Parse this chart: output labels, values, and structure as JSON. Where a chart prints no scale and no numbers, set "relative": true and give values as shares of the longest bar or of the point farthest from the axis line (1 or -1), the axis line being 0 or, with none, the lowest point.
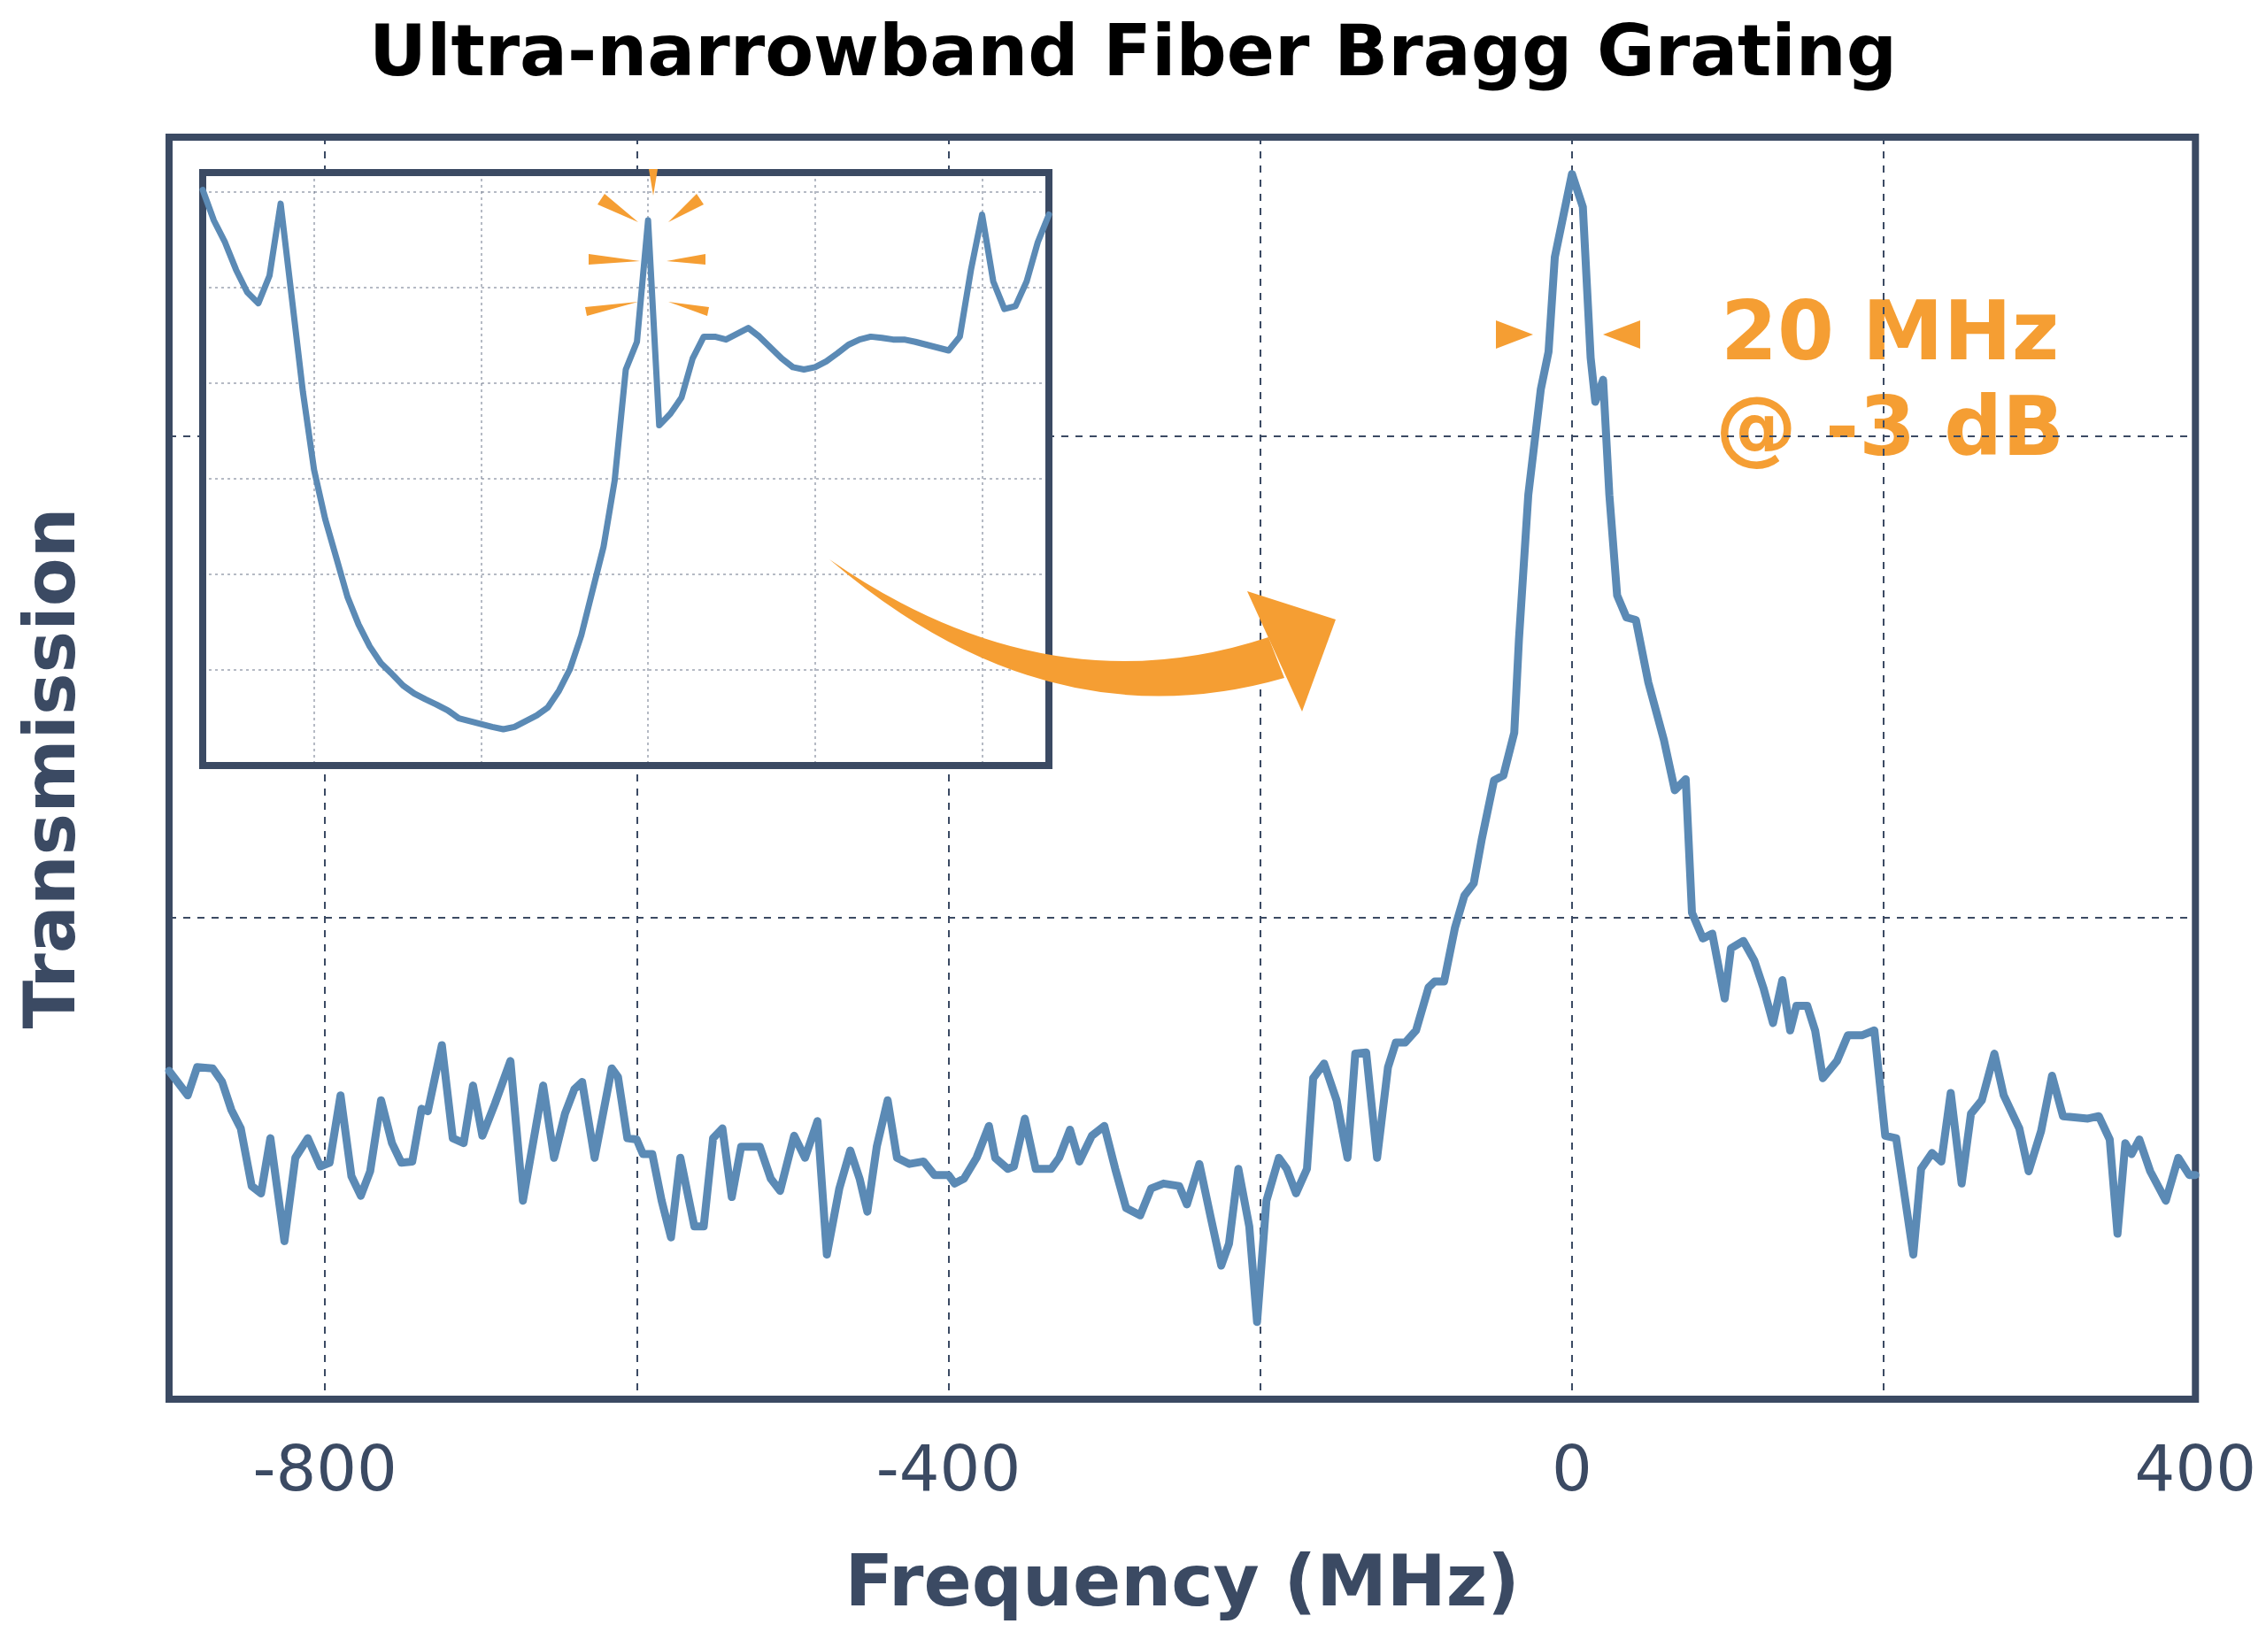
{
  "chart_data": [
    {
      "type": "line",
      "title": "Ultra-narrowband Fiber Bragg Grating",
      "xlabel": "Frequency (MHz)",
      "ylabel": "Transmission",
      "relative": true,
      "grid": true,
      "tick_labels": "x",
      "xlim": [
        -900,
        400
      ],
      "xticks": [
        -800,
        {
          "value": -600,
          "label": null
        },
        -400,
        {
          "value": -200,
          "label": null
        },
        0,
        {
          "value": 200,
          "label": null
        },
        400
      ],
      "annotations": [
        "20 MHz\n@ -3 dB"
      ],
      "x": [
        -900,
        -888,
        -882,
        -872,
        -866,
        -860,
        -854,
        -847,
        -841,
        -835,
        -826,
        -819,
        -811,
        -803,
        -797,
        -790,
        -783,
        -777,
        -771,
        -764,
        -757,
        -751,
        -744,
        -738,
        -734,
        -725,
        -718,
        -711,
        -705,
        -699,
        -691,
        -681,
        -673,
        -660,
        -653,
        -646,
        -640,
        -635,
        -627,
        -616,
        -612,
        -606,
        -600,
        -596,
        -590,
        -584,
        -578,
        -572,
        -563,
        -557,
        -551,
        -545,
        -539,
        -533,
        -521,
        -514,
        -508,
        -499,
        -492,
        -484,
        -478,
        -470,
        -463,
        -457,
        -452,
        -446,
        -439,
        -433,
        -425,
        -416,
        -409,
        -400,
        -396,
        -390,
        -382,
        -374,
        -370,
        -362,
        -358,
        -351,
        -344,
        -334,
        -329,
        -322,
        -316,
        -308,
        -300,
        -293,
        -286,
        -277,
        -270,
        -262,
        -252,
        -247,
        -239,
        -232,
        -225,
        -220,
        -214,
        -207,
        -202,
        -196,
        -188,
        -183,
        -177,
        -170,
        -166,
        -159,
        -151,
        -144,
        -139,
        -132,
        -125,
        -118,
        -113,
        -107,
        -100,
        -92,
        -88,
        -82,
        -75,
        -69,
        -63,
        -58,
        -50,
        -44,
        -37,
        -34,
        -28,
        -20,
        -15,
        -11,
        0,
        7,
        12,
        15,
        20,
        24,
        29,
        35,
        41,
        49,
        59,
        66,
        73,
        77,
        84,
        90,
        98,
        102,
        110,
        117,
        123,
        129,
        135,
        140,
        144,
        151,
        156,
        161,
        170,
        177,
        186,
        194,
        201,
        208,
        219,
        224,
        231,
        237,
        243,
        250,
        256,
        263,
        271,
        277,
        287,
        293,
        301,
        308,
        315,
        331,
        338,
        345,
        350,
        355,
        359,
        364,
        371,
        381,
        389,
        396,
        400
      ],
      "series": [
        {
          "color": "#5b8ab5",
          "values": [
            0.268,
            0.248,
            0.271,
            0.27,
            0.259,
            0.236,
            0.221,
            0.174,
            0.168,
            0.213,
            0.129,
            0.197,
            0.213,
            0.19,
            0.193,
            0.248,
            0.182,
            0.166,
            0.186,
            0.244,
            0.209,
            0.193,
            0.194,
            0.237,
            0.235,
            0.289,
            0.213,
            0.209,
            0.256,
            0.215,
            0.241,
            0.276,
            0.162,
            0.256,
            0.197,
            0.233,
            0.253,
            0.259,
            0.197,
            0.27,
            0.263,
            0.213,
            0.212,
            0.2,
            0.2,
            0.162,
            0.132,
            0.197,
            0.141,
            0.141,
            0.213,
            0.221,
            0.165,
            0.206,
            0.206,
            0.18,
            0.17,
            0.215,
            0.197,
            0.227,
            0.118,
            0.172,
            0.203,
            0.18,
            0.153,
            0.206,
            0.244,
            0.197,
            0.192,
            0.194,
            0.183,
            0.183,
            0.176,
            0.18,
            0.197,
            0.223,
            0.197,
            0.188,
            0.19,
            0.229,
            0.188,
            0.188,
            0.197,
            0.22,
            0.194,
            0.215,
            0.223,
            0.188,
            0.156,
            0.15,
            0.172,
            0.176,
            0.174,
            0.159,
            0.192,
            0.15,
            0.109,
            0.127,
            0.188,
            0.141,
            0.063,
            0.162,
            0.197,
            0.188,
            0.168,
            0.188,
            0.262,
            0.274,
            0.244,
            0.197,
            0.282,
            0.283,
            0.197,
            0.271,
            0.291,
            0.291,
            0.301,
            0.336,
            0.341,
            0.341,
            0.385,
            0.411,
            0.421,
            0.456,
            0.505,
            0.509,
            0.544,
            0.62,
            0.738,
            0.824,
            0.855,
            0.932,
            1,
            0.973,
            0.85,
            0.814,
            0.832,
            0.738,
            0.656,
            0.638,
            0.636,
            0.585,
            0.538,
            0.497,
            0.506,
            0.397,
            0.376,
            0.38,
            0.327,
            0.368,
            0.374,
            0.358,
            0.335,
            0.307,
            0.342,
            0.301,
            0.321,
            0.321,
            0.301,
            0.262,
            0.276,
            0.297,
            0.297,
            0.301,
            0.215,
            0.213,
            0.118,
            0.188,
            0.201,
            0.194,
            0.25,
            0.176,
            0.233,
            0.244,
            0.282,
            0.248,
            0.221,
            0.186,
            0.219,
            0.264,
            0.231,
            0.229,
            0.231,
            0.212,
            0.135,
            0.209,
            0.2,
            0.212,
            0.186,
            0.162,
            0.197,
            0.183,
            0.183
          ]
        }
      ]
    },
    {
      "type": "line",
      "relative": true,
      "grid": true,
      "tick_labels": false,
      "categories": [
        null,
        null,
        null,
        null,
        null,
        null,
        null,
        null,
        null,
        null,
        null,
        null,
        null,
        null,
        null,
        null,
        null,
        null,
        null,
        null,
        null,
        null,
        null,
        null,
        null,
        null,
        null,
        null,
        null,
        null,
        null,
        null,
        null,
        null,
        null,
        null,
        null,
        null,
        null,
        null,
        null,
        null,
        null,
        null,
        null,
        null,
        null,
        null,
        null,
        null,
        null,
        null,
        null,
        null,
        null,
        null,
        null,
        null,
        null,
        null,
        null,
        null,
        null,
        null,
        null,
        null,
        null,
        null,
        null,
        null,
        null,
        null,
        null,
        null,
        null,
        null,
        null
      ],
      "series": [
        {
          "color": "#5b8ab5",
          "values": [
            1,
            0.947,
            0.909,
            0.861,
            0.822,
            0.803,
            0.851,
            0.976,
            0.813,
            0.649,
            0.514,
            0.428,
            0.361,
            0.293,
            0.245,
            0.207,
            0.178,
            0.159,
            0.139,
            0.125,
            0.115,
            0.106,
            0.096,
            0.082,
            0.077,
            0.072,
            0.067,
            0.063,
            0.067,
            0.077,
            0.087,
            0.101,
            0.13,
            0.168,
            0.226,
            0.303,
            0.38,
            0.495,
            0.688,
            0.736,
            0.947,
            0.591,
            0.611,
            0.639,
            0.707,
            0.745,
            0.745,
            0.74,
            0.75,
            0.76,
            0.745,
            0.726,
            0.707,
            0.692,
            0.688,
            0.692,
            0.702,
            0.716,
            0.731,
            0.74,
            0.745,
            0.743,
            0.74,
            0.74,
            0.736,
            0.731,
            0.726,
            0.721,
            0.745,
            0.861,
            0.957,
            0.841,
            0.793,
            0.798,
            0.841,
            0.909,
            0.957
          ]
        }
      ]
    }
  ]
}
